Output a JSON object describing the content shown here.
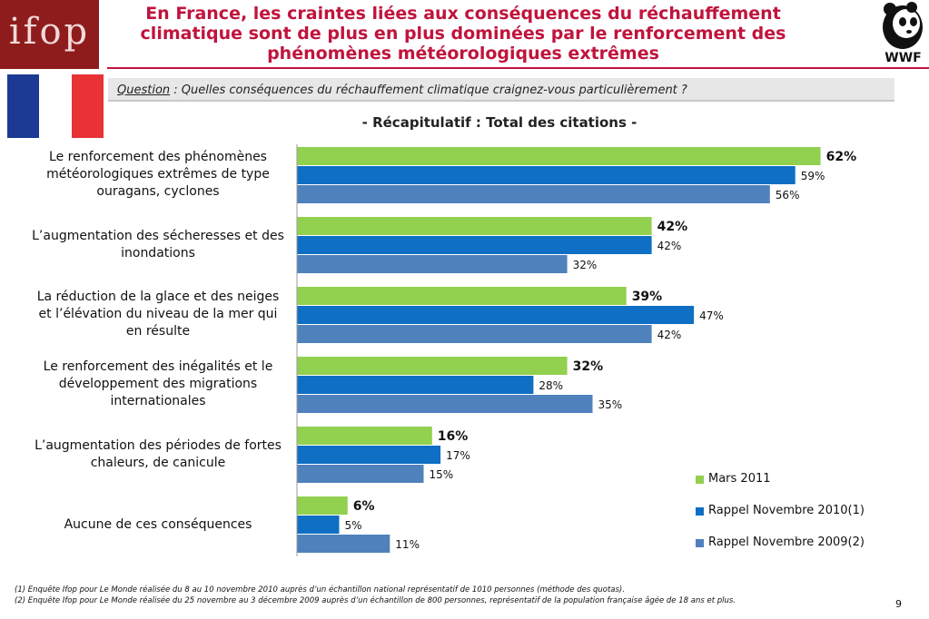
{
  "header": {
    "logo_text": "ifop",
    "title": "En France, les craintes liées aux conséquences du réchauffement climatique sont de plus en plus dominées par le renforcement des phénomènes météorologiques extrêmes",
    "wwf_text": "WWF"
  },
  "flag_colors": [
    "#1c3a93",
    "#ffffff",
    "#e83236"
  ],
  "question": {
    "label": "Question",
    "text": " : Quelles conséquences du réchauffement climatique craignez-vous particulièrement ?"
  },
  "subtitle": "- Récapitulatif : Total des citations -",
  "chart_data": {
    "type": "bar",
    "orientation": "horizontal",
    "categories": [
      "Le renforcement des phénomènes météorologiques extrêmes de type ouragans, cyclones",
      "L’augmentation des sécheresses et des inondations",
      "La réduction de la glace et des neiges et l’élévation du niveau de la mer qui en résulte",
      "Le renforcement des inégalités et le développement des migrations internationales",
      "L’augmentation des périodes de fortes chaleurs, de canicule",
      "Aucune de ces conséquences"
    ],
    "series": [
      {
        "name": "Mars 2011",
        "color": "#92d050",
        "values": [
          62,
          42,
          39,
          32,
          16,
          6
        ]
      },
      {
        "name": "Rappel Novembre 2010(1)",
        "color": "#0e6fc4",
        "values": [
          59,
          42,
          47,
          28,
          17,
          5
        ]
      },
      {
        "name": "Rappel Novembre 2009(2)",
        "color": "#4f81bd",
        "values": [
          56,
          32,
          42,
          35,
          15,
          11
        ]
      }
    ],
    "value_suffix": "%",
    "xlim": [
      0,
      65
    ],
    "grid": false,
    "legend_position": "bottom-right"
  },
  "footnotes": [
    "(1) Enquête Ifop pour Le Monde réalisée du 8 au 10 novembre 2010 auprès d’un échantillon national représentatif de 1010 personnes (méthode des quotas).",
    "(2) Enquête Ifop pour Le Monde réalisée du 25 novembre au 3 décembre 2009 auprès d’un échantillon de 800 personnes, représentatif de la population française âgée de 18 ans et plus."
  ],
  "page_number": "9"
}
